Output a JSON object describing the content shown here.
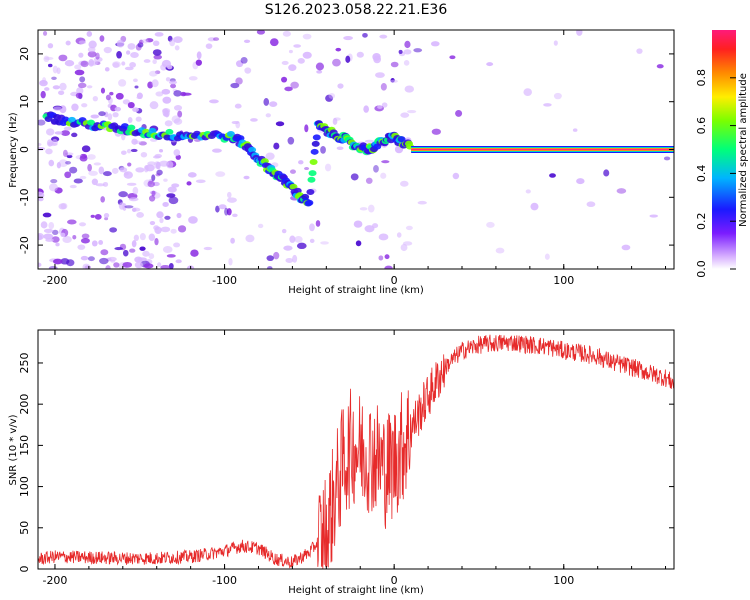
{
  "title": "S126.2023.058.22.21.E36",
  "colors": {
    "snr_line": "#e62a2a",
    "signal_band": "#ff2a7a",
    "scatter_light": "#d9b8ff",
    "scatter_mid": "#8a2be2",
    "scatter_dark": "#4b0bd1"
  },
  "spectrogram": {
    "xlabel": "Height of straight line (km)",
    "ylabel": "Frequency (Hz)",
    "xticks": [
      "-200",
      "-100",
      "0",
      "100"
    ],
    "yticks": [
      "-20",
      "-10",
      "0",
      "10",
      "20"
    ],
    "colorbar_label": "Normalized spectral amplitude",
    "colorbar_ticks": [
      "0.0",
      "0.2",
      "0.4",
      "0.6",
      "0.8"
    ]
  },
  "snr_panel": {
    "xlabel": "Height of straight line (km)",
    "ylabel": "SNR (10 * v/v)",
    "xticks": [
      "-200",
      "-100",
      "0",
      "100"
    ],
    "yticks": [
      "0",
      "50",
      "100",
      "150",
      "200",
      "250"
    ]
  },
  "chart_data": [
    {
      "type": "heatmap",
      "title": "S126.2023.058.22.21.E36",
      "xlabel": "Height of straight line (km)",
      "ylabel": "Frequency (Hz)",
      "xlim": [
        -210,
        165
      ],
      "ylim": [
        -25,
        25
      ],
      "colorbar": {
        "label": "Normalized spectral amplitude",
        "range": [
          0,
          1
        ]
      },
      "ridge": {
        "x": [
          -205,
          -195,
          -185,
          -175,
          -165,
          -155,
          -145,
          -135,
          -125,
          -115,
          -105,
          -95,
          -90,
          -85,
          -80,
          -75,
          -70,
          -65,
          -60,
          -55,
          -50,
          -45,
          -40,
          -35,
          -30,
          -25,
          -20,
          -15,
          -10,
          -5,
          0,
          5,
          10
        ],
        "y": [
          7,
          6,
          5.5,
          5,
          4.5,
          4,
          3.5,
          3,
          3,
          3,
          3,
          2.5,
          1.5,
          0,
          -2,
          -3.5,
          -5,
          -6.5,
          -8,
          -10,
          -11,
          5,
          4,
          3,
          2.5,
          1,
          0.5,
          0,
          1,
          2,
          2.5,
          1.5,
          0.5
        ]
      },
      "constant_band": {
        "x_start": 10,
        "x_end": 165,
        "y": 0
      }
    },
    {
      "type": "line",
      "xlabel": "Height of straight line (km)",
      "ylabel": "SNR (10 * v/v)",
      "xlim": [
        -210,
        165
      ],
      "ylim": [
        0,
        290
      ],
      "series": [
        {
          "x": [
            -210,
            -200,
            -180,
            -160,
            -140,
            -120,
            -110,
            -100,
            -90,
            -80,
            -70,
            -60,
            -50,
            -40,
            -35,
            -30,
            -25,
            -20,
            -15,
            -10,
            -5,
            0,
            5,
            10,
            20,
            30,
            40,
            50,
            60,
            70,
            80,
            90,
            100,
            110,
            120,
            130,
            140,
            150,
            160,
            165
          ],
          "values": [
            12,
            15,
            14,
            13,
            13,
            15,
            18,
            22,
            28,
            25,
            12,
            8,
            20,
            45,
            90,
            130,
            150,
            145,
            140,
            135,
            120,
            130,
            150,
            170,
            210,
            245,
            265,
            272,
            274,
            275,
            272,
            270,
            265,
            262,
            258,
            250,
            245,
            238,
            232,
            225
          ]
        }
      ]
    }
  ]
}
